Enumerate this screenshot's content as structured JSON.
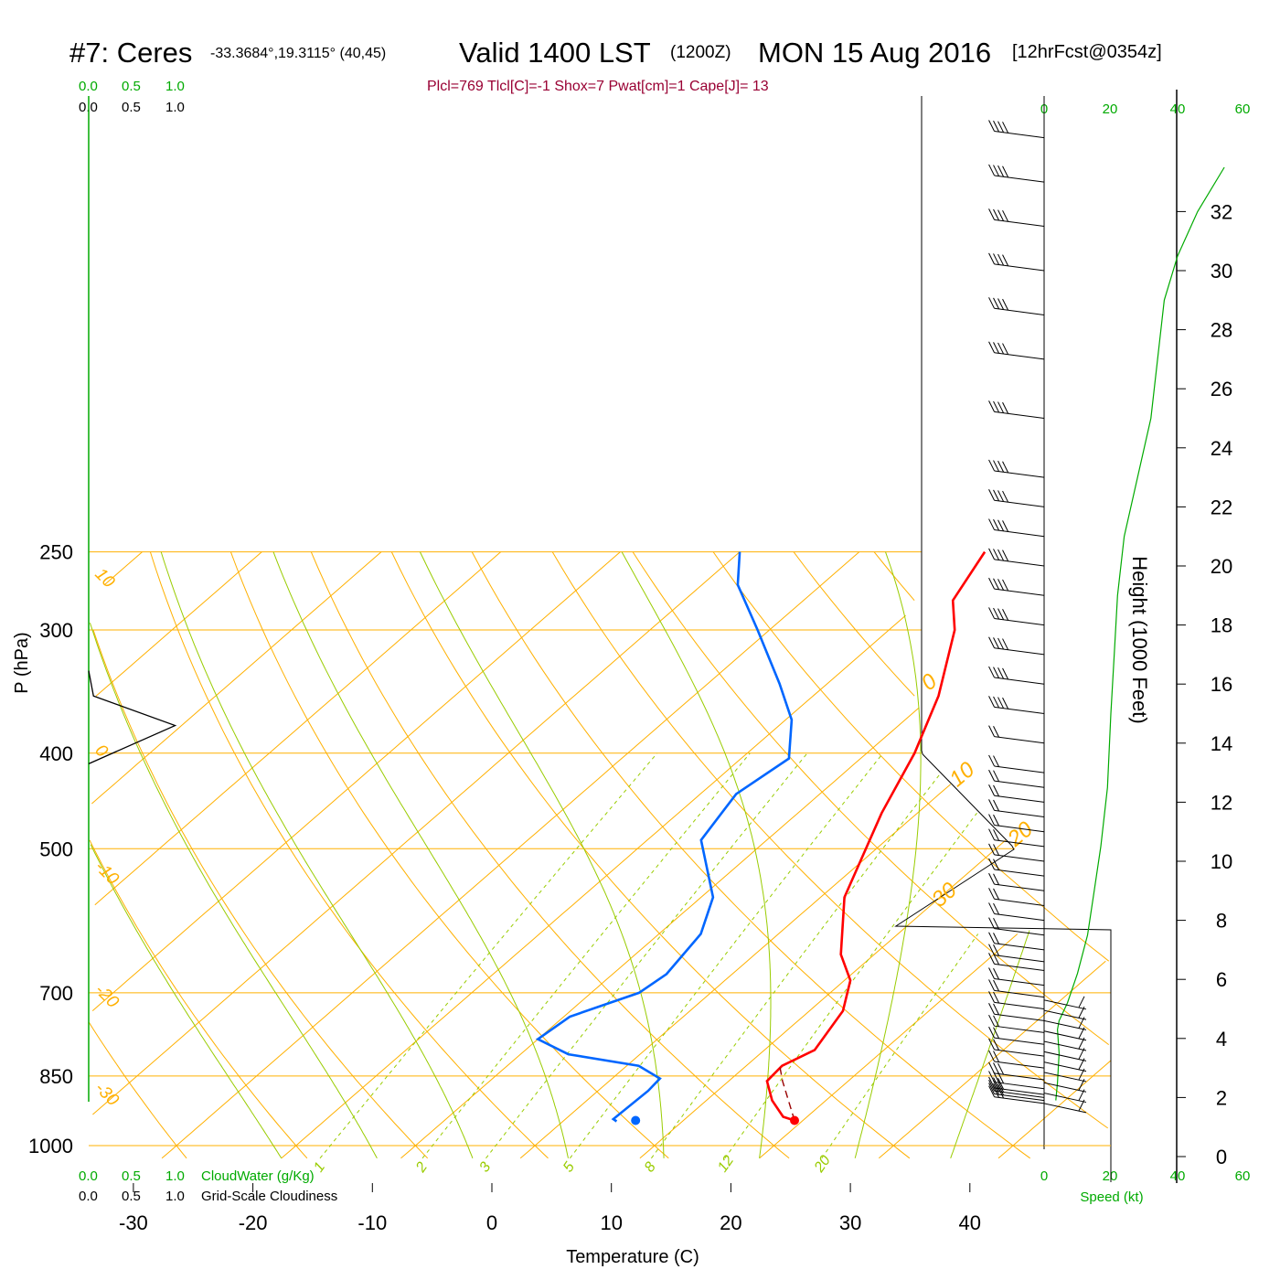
{
  "header": {
    "station": "#7: Ceres",
    "coords": "-33.3684°,19.3115° (40,45)",
    "valid": "Valid 1400 LST",
    "zulu": "(1200Z)",
    "date": "MON 15 Aug 2016",
    "forecast": "[12hrFcst@0354z]",
    "indices": "Plcl=769 Tlcl[C]=-1 Shox=7 Pwat[cm]=1 Cape[J]= 13"
  },
  "cloud_scale": {
    "green_labels": [
      "0.0",
      "0.5",
      "1.0"
    ],
    "black_labels": [
      "0.0",
      "0.5",
      "1.0"
    ],
    "cloudwater_label": "CloudWater (g/Kg)",
    "cloudiness_label": "Grid-Scale Cloudiness"
  },
  "speed_scale": {
    "top_labels": [
      "0",
      "20",
      "40",
      "60"
    ],
    "bottom_labels": [
      "0",
      "20",
      "40",
      "60"
    ],
    "label": "Speed (kt)"
  },
  "colors": {
    "temperature": "#ff0000",
    "dewpoint": "#0066ff",
    "isotherm": "#ffb000",
    "dry_adiabat": "#ffb000",
    "moist_adiabat": "#99cc00",
    "mixing_ratio": "#99cc00",
    "speed_curve": "#00aa00",
    "green_text": "#00aa00",
    "info_text": "#990033"
  },
  "chart_data": {
    "type": "line",
    "title": "#7: Ceres Valid 1400 LST (1200Z) MON 15 Aug 2016",
    "xlabel": "Temperature (C)",
    "ylabel": "P (hPa)",
    "y2label": "Height (1000 Feet)",
    "xlim": [
      -34,
      46
    ],
    "ylim": [
      1030,
      250
    ],
    "x_ticks": [
      -30,
      -20,
      -10,
      0,
      10,
      20,
      30,
      40
    ],
    "x_tick_labels": [
      "-30",
      "-20",
      "-10",
      "0",
      "10",
      "20",
      "30",
      "40"
    ],
    "pressure_levels": [
      250,
      300,
      400,
      500,
      700,
      850,
      1000
    ],
    "pressure_labels": [
      "250",
      "300",
      "400",
      "500",
      "700",
      "850",
      "1000"
    ],
    "height_ticks": [
      0,
      2,
      4,
      6,
      8,
      10,
      12,
      14,
      16,
      18,
      20,
      22,
      24,
      26,
      28,
      30,
      32
    ],
    "height_labels": [
      "0",
      "2",
      "4",
      "6",
      "8",
      "10",
      "12",
      "14",
      "16",
      "18",
      "20",
      "22",
      "24",
      "26",
      "28",
      "30",
      "32"
    ],
    "isotherm_labels": [
      {
        "text": "10",
        "p": 265
      },
      {
        "text": "0",
        "p": 400
      },
      {
        "text": "-10",
        "p": 525
      },
      {
        "text": "-20",
        "p": 700
      },
      {
        "text": "-30",
        "p": 880
      }
    ],
    "right_isotherm_labels": [
      {
        "text": "0",
        "p": 342
      },
      {
        "text": "10",
        "p": 428
      },
      {
        "text": "20",
        "p": 492
      },
      {
        "text": "30",
        "p": 567
      }
    ],
    "mixing_ratio_labels": [
      "1",
      "2",
      "3",
      "5",
      "8",
      "12",
      "20"
    ],
    "mixing_ratios": [
      1,
      2,
      3,
      5,
      8,
      12,
      20
    ],
    "series": [
      {
        "name": "Temperature",
        "data": [
          [
            19.3,
            943
          ],
          [
            18.0,
            935
          ],
          [
            15.5,
            900
          ],
          [
            13.2,
            860
          ],
          [
            13.0,
            830
          ],
          [
            14.2,
            800
          ],
          [
            12.8,
            730
          ],
          [
            10.5,
            680
          ],
          [
            7.2,
            640
          ],
          [
            2.0,
            560
          ],
          [
            -3.0,
            460
          ],
          [
            -6.0,
            400
          ],
          [
            -9.5,
            350
          ],
          [
            -14.5,
            300
          ],
          [
            -17.5,
            280
          ],
          [
            -19.5,
            250
          ]
        ],
        "color": "#ff0000"
      },
      {
        "name": "Dewpoint",
        "data": [
          [
            4.5,
            945
          ],
          [
            4.0,
            940
          ],
          [
            4.2,
            880
          ],
          [
            4.0,
            855
          ],
          [
            1.0,
            830
          ],
          [
            -6.0,
            808
          ],
          [
            -10.0,
            780
          ],
          [
            -9.5,
            740
          ],
          [
            -6.0,
            700
          ],
          [
            -5.5,
            670
          ],
          [
            -6.5,
            610
          ],
          [
            -9.0,
            560
          ],
          [
            -15.5,
            490
          ],
          [
            -17.0,
            440
          ],
          [
            -16.0,
            405
          ],
          [
            -19.5,
            370
          ],
          [
            -24.0,
            340
          ],
          [
            -31.0,
            300
          ],
          [
            -37.0,
            270
          ],
          [
            -40.0,
            250
          ]
        ],
        "color": "#0066ff"
      },
      {
        "name": "Parcel",
        "data": [
          [
            19.3,
            943
          ],
          [
            14.5,
            860
          ],
          [
            12.8,
            830
          ]
        ],
        "color": "#990000"
      }
    ],
    "surface_points": [
      {
        "name": "surface_temperature",
        "t": 19.3,
        "p": 943
      },
      {
        "name": "surface_dewpoint",
        "t": 6.0,
        "p": 943
      }
    ],
    "cloudiness_profile": [
      [
        0,
        330
      ],
      [
        0.05,
        350
      ],
      [
        0.9,
        375
      ],
      [
        0,
        410
      ]
    ],
    "wind_speed_profile": [
      [
        3.5,
        1.9
      ],
      [
        4,
        2.5
      ],
      [
        4.5,
        3.5
      ],
      [
        4.0,
        4.3
      ],
      [
        4.5,
        4.6
      ],
      [
        7,
        5.2
      ],
      [
        10,
        6.2
      ],
      [
        13,
        7.5
      ],
      [
        15,
        9.0
      ],
      [
        17,
        10.5
      ],
      [
        19,
        12.5
      ],
      [
        20,
        15
      ],
      [
        21,
        17
      ],
      [
        22,
        19
      ],
      [
        24,
        21
      ],
      [
        28,
        23
      ],
      [
        32,
        25
      ],
      [
        34,
        27
      ],
      [
        36,
        29
      ],
      [
        40,
        30.5
      ],
      [
        46,
        32
      ],
      [
        54,
        33.5
      ]
    ],
    "wind_barb_heights": [
      1.8,
      1.9,
      2.0,
      2.1,
      2.3,
      2.6,
      3.0,
      3.4,
      3.8,
      4.2,
      4.6,
      5.0,
      5.4,
      5.8,
      6.3,
      6.6,
      7.0,
      7.5,
      8.0,
      8.5,
      9.0,
      9.5,
      10.0,
      10.5,
      11.0,
      11.5,
      12.0,
      12.5,
      13.0,
      14.0,
      15.0,
      16.0,
      17.0,
      18.0,
      19.0,
      20.0,
      21.0,
      22.0,
      23.0,
      25.0,
      27.0,
      28.5,
      30.0,
      31.5,
      33.0,
      34.5
    ]
  }
}
